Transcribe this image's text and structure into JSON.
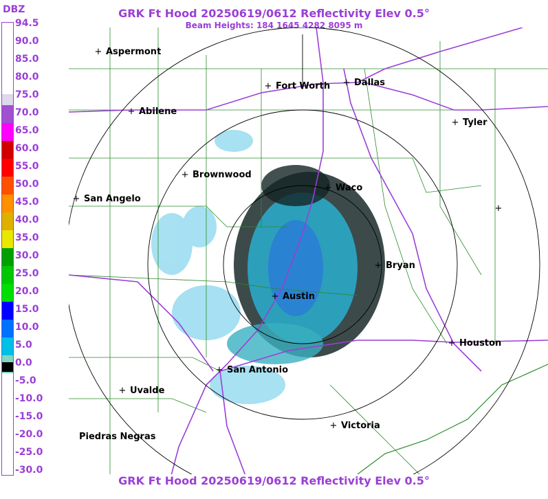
{
  "header": {
    "title": "GRK Ft Hood 20250619/0612 Reflectivity Elev 0.5°",
    "subtitle": "Beam Heights: 184 1645 4282 8095 m",
    "bottom_title": "GRK Ft Hood 20250619/0612 Reflectivity Elev 0.5°"
  },
  "legend": {
    "unit": "DBZ",
    "ticks": [
      "94.5",
      "90.0",
      "85.0",
      "80.0",
      "75.0",
      "70.0",
      "65.0",
      "60.0",
      "55.0",
      "50.0",
      "45.0",
      "40.0",
      "35.0",
      "30.0",
      "25.0",
      "20.0",
      "15.0",
      "10.0",
      "5.0",
      "0.0",
      "-5.0",
      "-10.0",
      "-15.0",
      "-20.0",
      "-25.0",
      "-30.0"
    ],
    "colors": {
      "75.0": "#e0d8ec",
      "70.0": "#a050d0",
      "65.0": "#ff00ff",
      "60.0": "#d00000",
      "55.0": "#ff0000",
      "50.0": "#ff5000",
      "45.0": "#ff9000",
      "40.0": "#e0b000",
      "35.0": "#e8e800",
      "30.0": "#00a000",
      "25.0": "#00c800",
      "20.0": "#00e000",
      "15.0": "#0000ff",
      "10.0": "#0070ff",
      "5.0": "#00c0e8",
      "0.0": "#80d8c0",
      "-5.0": "#000000"
    }
  },
  "cities": {
    "aspermont": "Aspermont",
    "abilene": "Abilene",
    "fort_worth": "Fort Worth",
    "dallas": "Dallas",
    "tyler": "Tyler",
    "brownwood": "Brownwood",
    "waco": "Waco",
    "san_angelo": "San Angelo",
    "bryan": "Bryan",
    "austin": "Austin",
    "houston": "Houston",
    "san_antonio": "San Antonio",
    "uvalde": "Uvalde",
    "victoria": "Victoria",
    "piedras_negras": "Piedras Negras"
  },
  "colors": {
    "label": "#9a3fd6",
    "county_lines": "#2a8a2a",
    "highways": "#9a3fd6",
    "range_rings": "#000000"
  }
}
